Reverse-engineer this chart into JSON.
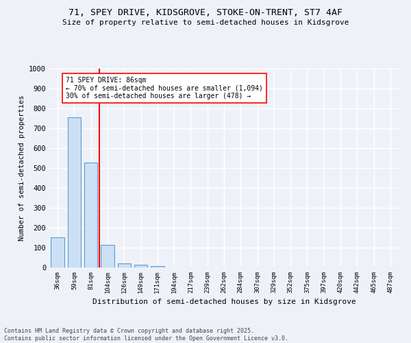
{
  "title1": "71, SPEY DRIVE, KIDSGROVE, STOKE-ON-TRENT, ST7 4AF",
  "title2": "Size of property relative to semi-detached houses in Kidsgrove",
  "xlabel": "Distribution of semi-detached houses by size in Kidsgrove",
  "ylabel": "Number of semi-detached properties",
  "categories": [
    "36sqm",
    "59sqm",
    "81sqm",
    "104sqm",
    "126sqm",
    "149sqm",
    "171sqm",
    "194sqm",
    "217sqm",
    "239sqm",
    "262sqm",
    "284sqm",
    "307sqm",
    "329sqm",
    "352sqm",
    "375sqm",
    "397sqm",
    "420sqm",
    "442sqm",
    "465sqm",
    "487sqm"
  ],
  "values": [
    152,
    756,
    526,
    113,
    20,
    14,
    8,
    0,
    0,
    0,
    0,
    0,
    0,
    0,
    0,
    0,
    0,
    0,
    0,
    0,
    0
  ],
  "bar_color": "#cce0f5",
  "bar_edge_color": "#5b9bd5",
  "vline_x": 2.5,
  "vline_color": "red",
  "annotation_text": "71 SPEY DRIVE: 86sqm\n← 70% of semi-detached houses are smaller (1,094)\n30% of semi-detached houses are larger (478) →",
  "annotation_box_color": "white",
  "annotation_box_edge": "red",
  "ylim": [
    0,
    1000
  ],
  "yticks": [
    0,
    100,
    200,
    300,
    400,
    500,
    600,
    700,
    800,
    900,
    1000
  ],
  "footer1": "Contains HM Land Registry data © Crown copyright and database right 2025.",
  "footer2": "Contains public sector information licensed under the Open Government Licence v3.0.",
  "bg_color": "#eef2f8",
  "plot_bg_color": "#eef2f8",
  "grid_color": "white"
}
